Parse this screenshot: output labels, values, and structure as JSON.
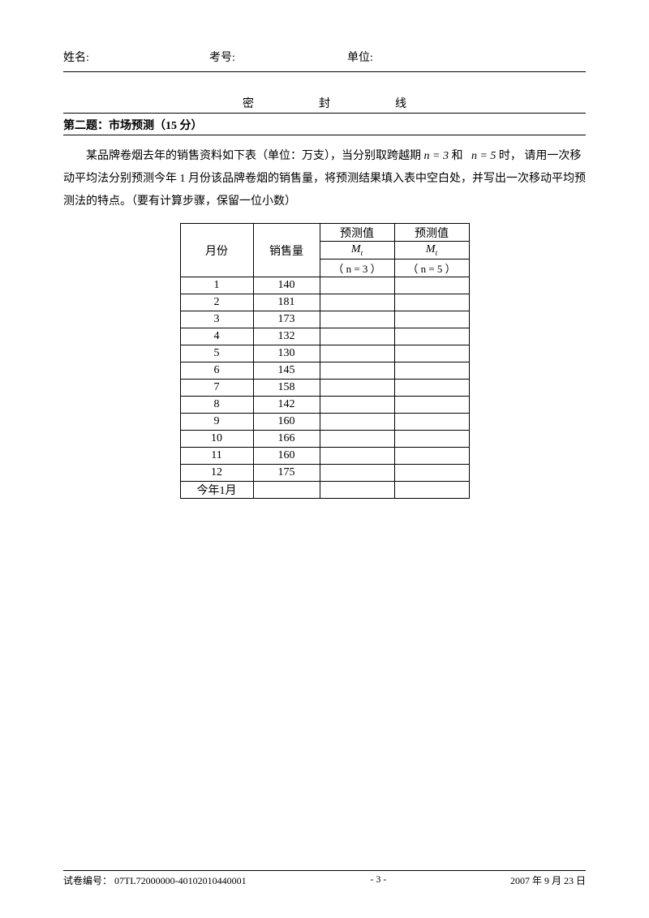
{
  "header": {
    "name_label": "姓名:",
    "exam_label": "考号:",
    "unit_label": "单位:"
  },
  "seal": {
    "mi": "密",
    "feng": "封",
    "xian": "线"
  },
  "question": {
    "title": "第二题：市场预测（15 分）",
    "para1_a": "某品牌卷烟去年的销售资料如下表（单位：万支），当分别取跨越期",
    "n3": "n = 3",
    "para1_b": "和",
    "n5": "n = 5",
    "para1_c": "时， 请用一次移",
    "para2": "动平均法分别预测今年 1 月份该品牌卷烟的销售量，将预测结果填入表中空白处，并写出一次移动平均预测法的特点。（要有计算步骤，保留一位小数）"
  },
  "table": {
    "headers": {
      "month": "月份",
      "sales": "销售量",
      "pred": "预测值",
      "M": "M",
      "sub": "t",
      "n3line": "（ n = 3  ）",
      "n5line": "（ n = 5  ）"
    },
    "rows": [
      {
        "m": "1",
        "s": "140"
      },
      {
        "m": "2",
        "s": "181"
      },
      {
        "m": "3",
        "s": "173"
      },
      {
        "m": "4",
        "s": "132"
      },
      {
        "m": "5",
        "s": "130"
      },
      {
        "m": "6",
        "s": "145"
      },
      {
        "m": "7",
        "s": "158"
      },
      {
        "m": "8",
        "s": "142"
      },
      {
        "m": "9",
        "s": "160"
      },
      {
        "m": "10",
        "s": "166"
      },
      {
        "m": "11",
        "s": "160"
      },
      {
        "m": "12",
        "s": "175"
      },
      {
        "m": "今年1月",
        "s": ""
      }
    ]
  },
  "footer": {
    "left": "试卷编号：  07TL72000000-40102010440001",
    "mid": "-  3  -",
    "right": "2007 年 9 月 23 日"
  }
}
